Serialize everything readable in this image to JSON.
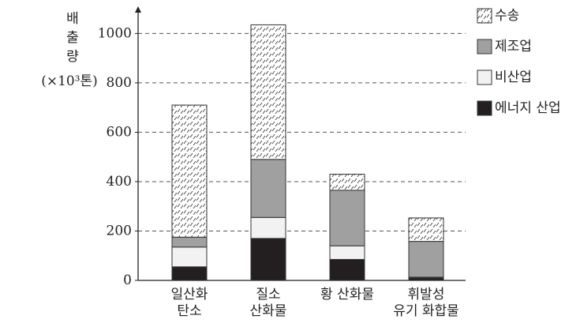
{
  "chart_data": {
    "type": "stacked_bar",
    "y_label": "배출량",
    "y_unit": "(×10³톤)",
    "categories": [
      "일산화\n탄소",
      "질소\n산화물",
      "황 산화물",
      "휘발성\n유기 화합물"
    ],
    "series": [
      {
        "name": "에너지 산업",
        "color": "#231f20",
        "values": [
          55,
          170,
          85,
          10
        ]
      },
      {
        "name": "비산업",
        "color": "#f2f2f2",
        "values": [
          80,
          85,
          55,
          3
        ]
      },
      {
        "name": "제조업",
        "color": "#a0a0a0",
        "values": [
          40,
          235,
          225,
          145
        ]
      },
      {
        "name": "수송",
        "color": "#ffffff",
        "pattern": "hatch",
        "values": [
          535,
          545,
          65,
          95
        ]
      }
    ],
    "ylim": [
      0,
      1110
    ],
    "yticks": [
      0,
      200,
      400,
      600,
      800,
      1000
    ],
    "grid": true
  }
}
